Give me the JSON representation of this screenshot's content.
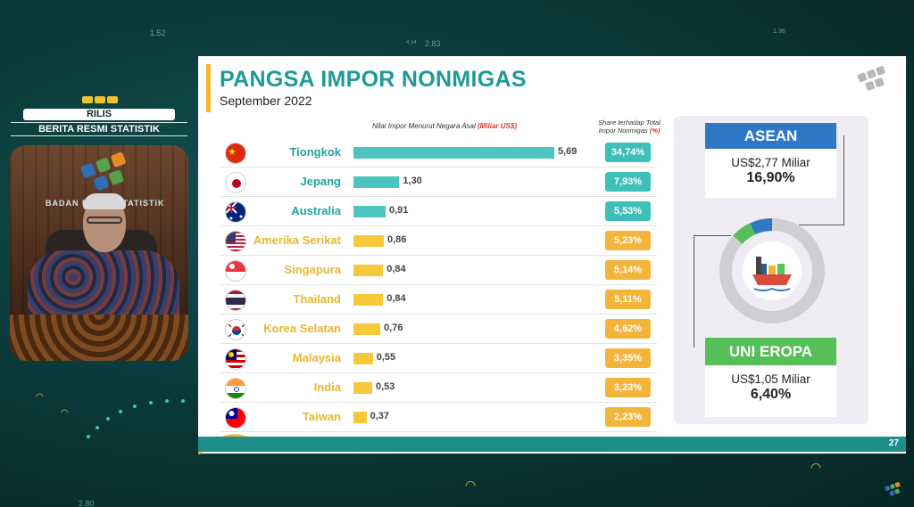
{
  "background": {
    "numbers": [
      "1.52",
      "4.54",
      "2.83",
      "1.36",
      "2.80"
    ]
  },
  "presenter": {
    "rilis_label": "RILIS",
    "berita_label": "BERITA RESMI STATISTIK",
    "backdrop_text": "BADAN PUSAT STATISTIK"
  },
  "slide": {
    "title": "PANGSA IMPOR NONMIGAS",
    "subtitle": "September 2022",
    "value_header_prefix": "Nilai Impor Menurut Negara Asal",
    "value_header_unit": "(Miliar US$)",
    "share_header_line1": "Share terhadap Total",
    "share_header_line2": "Impor Nonmigas",
    "share_header_unit": "(%)",
    "page_number": "27",
    "colors": {
      "teal": "#1e9a96",
      "bar_teal": "#4cc4c0",
      "bar_yellow": "#f5c93a",
      "share_teal": "#3fbfba",
      "share_orange": "#f2b43a",
      "country_teal": "#22a39f",
      "country_yellow": "#e9b72d"
    }
  },
  "chart_data": {
    "type": "bar",
    "categories": [
      "Tiongkok",
      "Jepang",
      "Australia",
      "Amerika Serikat",
      "Singapura",
      "Thailand",
      "Korea Selatan",
      "Malaysia",
      "India",
      "Taiwan"
    ],
    "values": [
      5.69,
      1.3,
      0.91,
      0.86,
      0.84,
      0.84,
      0.76,
      0.55,
      0.53,
      0.37
    ],
    "value_labels": [
      "5,69",
      "1,30",
      "0,91",
      "0,86",
      "0,84",
      "0,84",
      "0,76",
      "0,55",
      "0,53",
      "0,37"
    ],
    "shares": [
      "34,74%",
      "7,93%",
      "5,53%",
      "5,23%",
      "5,14%",
      "5,11%",
      "4,62%",
      "3,35%",
      "3,23%",
      "2,23%"
    ],
    "highlight": [
      "teal",
      "teal",
      "teal",
      "yellow",
      "yellow",
      "yellow",
      "yellow",
      "yellow",
      "yellow",
      "yellow"
    ],
    "flags": [
      "china-flag",
      "japan-flag",
      "australia-flag",
      "usa-flag",
      "singapore-flag",
      "thailand-flag",
      "south-korea-flag",
      "malaysia-flag",
      "india-flag",
      "taiwan-flag"
    ],
    "xlim": [
      0,
      5.69
    ]
  },
  "panel": {
    "asean": {
      "label": "ASEAN",
      "amount": "US$2,77 Miliar",
      "share": "16,90%",
      "share_value": 16.9,
      "color": "#2f78c6"
    },
    "eu": {
      "label": "UNI EROPA",
      "amount": "US$1,05 Miliar",
      "share": "6,40%",
      "share_value": 6.4,
      "color": "#56bf57"
    },
    "center_icon": "cargo-ship-icon"
  }
}
